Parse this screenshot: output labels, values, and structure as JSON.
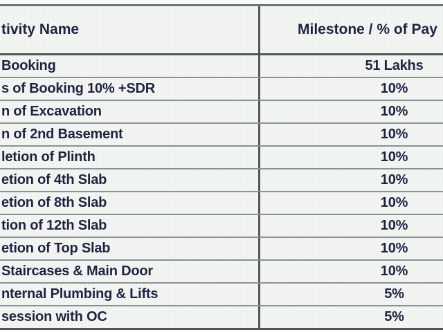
{
  "table": {
    "title_note": "construction payment schedule table, cropped at left and right edges",
    "header": {
      "activity": "tivity Name",
      "milestone": "Milestone / % of Pay"
    },
    "rows": [
      {
        "activity": "Booking",
        "milestone": "51 Lakhs"
      },
      {
        "activity": "s of Booking 10% +SDR",
        "milestone": "10%"
      },
      {
        "activity": "n of Excavation",
        "milestone": "10%"
      },
      {
        "activity": "n of 2nd Basement",
        "milestone": "10%"
      },
      {
        "activity": "letion of Plinth",
        "milestone": "10%"
      },
      {
        "activity": "etion of 4th Slab",
        "milestone": "10%"
      },
      {
        "activity": "etion of 8th Slab",
        "milestone": "10%"
      },
      {
        "activity": "tion of 12th Slab",
        "milestone": "10%"
      },
      {
        "activity": "etion of Top Slab",
        "milestone": "10%"
      },
      {
        "activity": "Staircases & Main Door",
        "milestone": "10%"
      },
      {
        "activity": "nternal Plumbing & Lifts",
        "milestone": "5%"
      },
      {
        "activity": "session with OC",
        "milestone": "5%"
      }
    ],
    "colors": {
      "text": "#1f2340",
      "grid_light": "#8a9194",
      "grid_dark": "#4f565a",
      "cell_background": "#f2f4f2",
      "page_background": "#fbfcfb"
    }
  },
  "chart_data": {
    "type": "table",
    "columns": [
      "tivity Name",
      "Milestone / % of Pay"
    ],
    "rows": [
      [
        "Booking",
        "51 Lakhs"
      ],
      [
        "s of Booking 10% +SDR",
        "10%"
      ],
      [
        "n of Excavation",
        "10%"
      ],
      [
        "n of 2nd Basement",
        "10%"
      ],
      [
        "letion of Plinth",
        "10%"
      ],
      [
        "etion of 4th Slab",
        "10%"
      ],
      [
        "etion of 8th Slab",
        "10%"
      ],
      [
        "tion of 12th Slab",
        "10%"
      ],
      [
        "etion of Top Slab",
        "10%"
      ],
      [
        "Staircases & Main Door",
        "10%"
      ],
      [
        "nternal Plumbing & Lifts",
        "5%"
      ],
      [
        "session with OC",
        "5%"
      ]
    ]
  }
}
